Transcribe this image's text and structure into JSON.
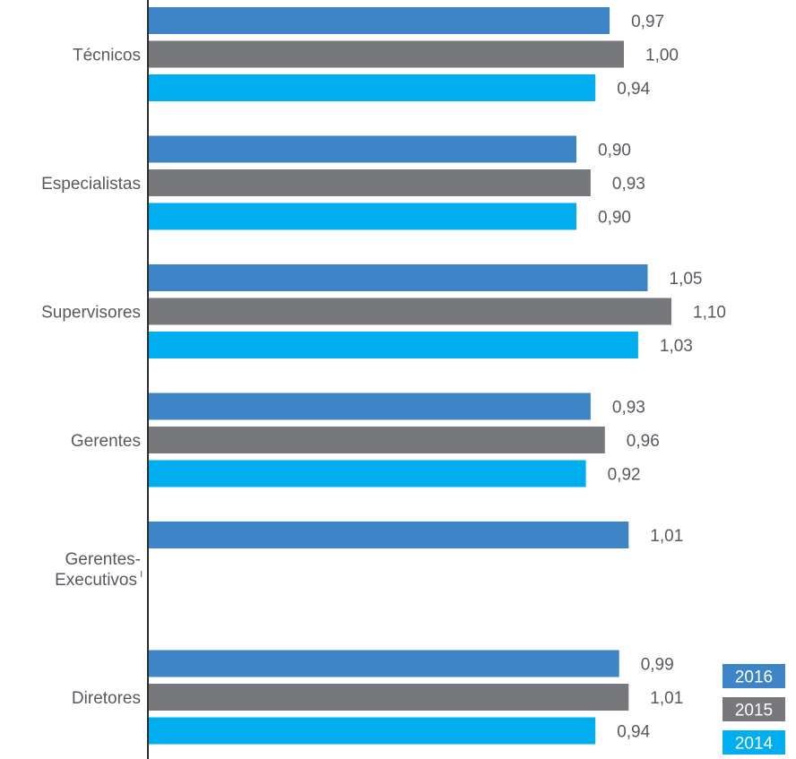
{
  "chart_data": {
    "type": "bar",
    "orientation": "horizontal",
    "categories": [
      "Técnicos",
      "Especialistas",
      "Supervisores",
      "Gerentes",
      "Gerentes-Executivos",
      "Diretores"
    ],
    "category_display": [
      {
        "lines": [
          "Técnicos"
        ],
        "superscript": ""
      },
      {
        "lines": [
          "Especialistas"
        ],
        "superscript": ""
      },
      {
        "lines": [
          "Supervisores"
        ],
        "superscript": ""
      },
      {
        "lines": [
          "Gerentes"
        ],
        "superscript": ""
      },
      {
        "lines": [
          "Gerentes-",
          "Executivos"
        ],
        "superscript": "I"
      },
      {
        "lines": [
          "Diretores"
        ],
        "superscript": ""
      }
    ],
    "series": [
      {
        "name": "2016",
        "color": "#3d85c6",
        "values": [
          0.97,
          0.9,
          1.05,
          0.93,
          1.01,
          0.99
        ],
        "labels": [
          "0,97",
          "0,90",
          "1,05",
          "0,93",
          "1,01",
          "0,99"
        ]
      },
      {
        "name": "2015",
        "color": "#76787b",
        "values": [
          1.0,
          0.93,
          1.1,
          0.96,
          null,
          1.01
        ],
        "labels": [
          "1,00",
          "0,93",
          "1,10",
          "0,96",
          "",
          "1,01"
        ]
      },
      {
        "name": "2014",
        "color": "#00aeef",
        "values": [
          0.94,
          0.9,
          1.03,
          0.92,
          null,
          0.94
        ],
        "labels": [
          "0,94",
          "0,90",
          "1,03",
          "0,92",
          "",
          "0,94"
        ]
      }
    ],
    "legend_position": "bottom-right",
    "xlim": [
      0,
      1.1
    ],
    "grid": false,
    "title": "",
    "xlabel": "",
    "ylabel": ""
  }
}
